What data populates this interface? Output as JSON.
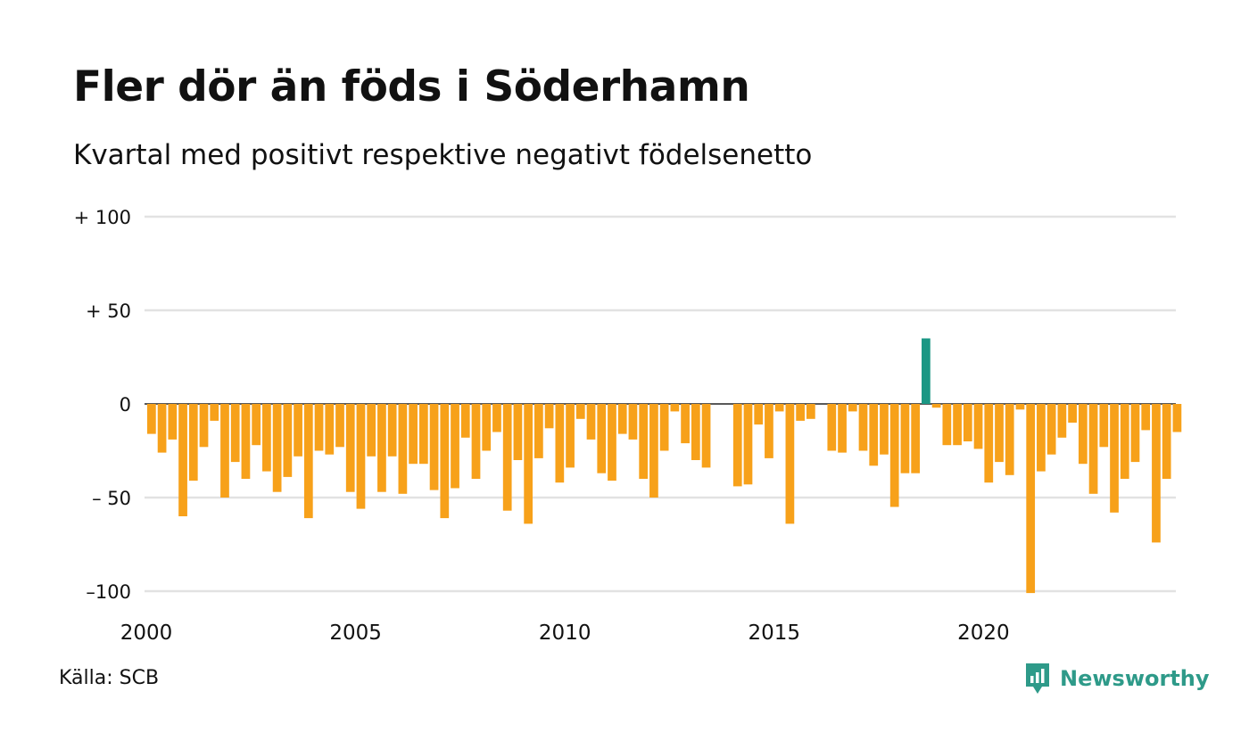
{
  "title": "Fler dör än föds i Söderhamn",
  "subtitle": "Kvartal med positivt respektive negativt födelsenetto",
  "source": "Källa: SCB",
  "brand": {
    "name": "Newsworthy",
    "icon": "newsworthy-logo-icon"
  },
  "colors": {
    "negative": "#f7a11a",
    "positive": "#1a9784",
    "grid": "#e2e2e2",
    "zero": "#222222",
    "brand": "#2e9a89"
  },
  "chart_data": {
    "type": "bar",
    "x_start": "2000 Q1",
    "frequency": "quarterly",
    "ylim": [
      -100,
      100
    ],
    "y_ticks": [
      100,
      50,
      0,
      -50,
      -100
    ],
    "y_tick_labels": [
      "+ 100",
      "+  50",
      "0",
      "– 50",
      "–100"
    ],
    "x_ticks": [
      2000,
      2005,
      2010,
      2015,
      2020
    ],
    "x_tick_labels": [
      "2000",
      "2005",
      "2010",
      "2015",
      "2020"
    ],
    "grid": true,
    "values": [
      -16,
      -26,
      -19,
      -60,
      -41,
      -23,
      -9,
      -50,
      -31,
      -40,
      -22,
      -36,
      -47,
      -39,
      -28,
      -61,
      -25,
      -27,
      -23,
      -47,
      -56,
      -28,
      -47,
      -28,
      -48,
      -32,
      -32,
      -46,
      -61,
      -45,
      -18,
      -40,
      -25,
      -15,
      -57,
      -30,
      -64,
      -29,
      -13,
      -42,
      -34,
      -8,
      -19,
      -37,
      -41,
      -16,
      -19,
      -40,
      -50,
      -25,
      -4,
      -21,
      -30,
      -34,
      0,
      0,
      -44,
      -43,
      -11,
      -29,
      -4,
      -64,
      -9,
      -8,
      0,
      -25,
      -26,
      -4,
      -25,
      -33,
      -27,
      -55,
      -37,
      -37,
      35,
      -2,
      -22,
      -22,
      -20,
      -24,
      -42,
      -31,
      -38,
      -3,
      -101,
      -36,
      -27,
      -18,
      -10,
      -32,
      -48,
      -23,
      -58,
      -40,
      -31,
      -14,
      -74,
      -40,
      -15
    ]
  }
}
